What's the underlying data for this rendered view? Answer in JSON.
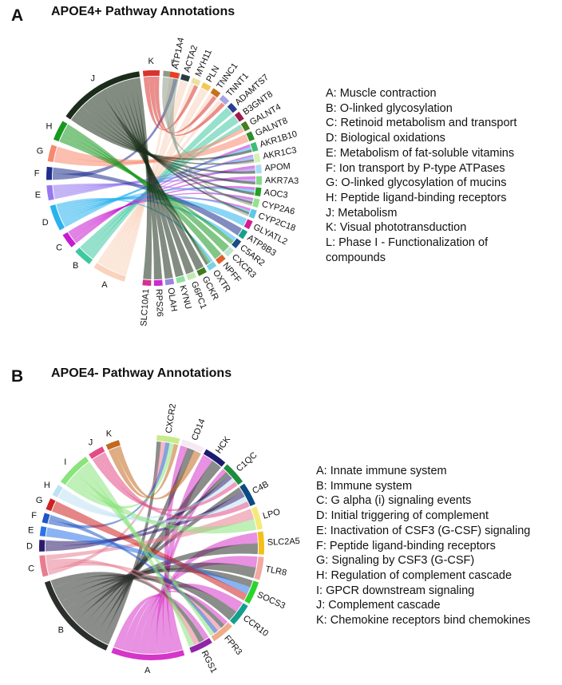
{
  "panelA": {
    "letter": "A",
    "title": "APOE4+ Pathway Annotations",
    "legend": [
      "A: Muscle contraction",
      "B: O-linked glycosylation",
      "C: Retinoid metabolism and transport",
      "D: Biological oxidations",
      "E: Metabolism of fat-soluble vitamins",
      "F: Ion transport by P-type ATPases",
      "G: O-linked glycosylation of mucins",
      "H: Peptide ligand-binding receptors",
      "J: Metabolism",
      "K: Visual phototransduction",
      "L: Phase I - Functionalization of",
      "compounds"
    ],
    "pathways": [
      {
        "label": "A",
        "color": "#f9d3bd"
      },
      {
        "label": "B",
        "color": "#3ec8a0"
      },
      {
        "label": "C",
        "color": "#c61ccf"
      },
      {
        "label": "D",
        "color": "#29b2ee"
      },
      {
        "label": "E",
        "color": "#9678ee"
      },
      {
        "label": "F",
        "color": "#1d2e8c"
      },
      {
        "label": "G",
        "color": "#f7896e"
      },
      {
        "label": "H",
        "color": "#18981f"
      },
      {
        "label": "J",
        "color": "#1b2d1a"
      },
      {
        "label": "K",
        "color": "#d8332e"
      },
      {
        "label": "L",
        "color": "#8d9a8a"
      }
    ],
    "genes": [
      {
        "label": "ATP1A4",
        "color": "#ee3e1d"
      },
      {
        "label": "ACTA2",
        "color": "#2d3a42"
      },
      {
        "label": "MYH11",
        "color": "#ece0a2"
      },
      {
        "label": "PLN",
        "color": "#f3c85a"
      },
      {
        "label": "TNNC1",
        "color": "#c7701d"
      },
      {
        "label": "TNNT1",
        "color": "#a7a5e2"
      },
      {
        "label": "ADAMTS7",
        "color": "#2a3f8f"
      },
      {
        "label": "B3GNT8",
        "color": "#a0194f"
      },
      {
        "label": "GALNT4",
        "color": "#487c1f"
      },
      {
        "label": "GALNT8",
        "color": "#2d8c2a"
      },
      {
        "label": "AKR1B10",
        "color": "#3bbd78"
      },
      {
        "label": "AKR1C3",
        "color": "#d4f2b4"
      },
      {
        "label": "APOM",
        "color": "#a8dcef"
      },
      {
        "label": "AKR7A3",
        "color": "#82d98a"
      },
      {
        "label": "AOC3",
        "color": "#23a023"
      },
      {
        "label": "CYP2A6",
        "color": "#93e38d"
      },
      {
        "label": "CYP2C18",
        "color": "#5cc7e8"
      },
      {
        "label": "GLYATL2",
        "color": "#d21d8f"
      },
      {
        "label": "ATP8B3",
        "color": "#16a089"
      },
      {
        "label": "C5AR2",
        "color": "#1a4d86"
      },
      {
        "label": "CXCR3",
        "color": "#bfe5d0"
      },
      {
        "label": "NPFF",
        "color": "#e0602e"
      },
      {
        "label": "OXTR",
        "color": "#7ad2e5"
      },
      {
        "label": "GCKR",
        "color": "#3f7d1d"
      },
      {
        "label": "G6PC1",
        "color": "#c1e9b6"
      },
      {
        "label": "KYNU",
        "color": "#8ee09f"
      },
      {
        "label": "OLAH",
        "color": "#9a86dc"
      },
      {
        "label": "RPS26",
        "color": "#cc2ad0"
      },
      {
        "label": "SLC10A1",
        "color": "#d62f8e"
      }
    ]
  },
  "panelB": {
    "letter": "B",
    "title": "APOE4- Pathway Annotations",
    "legend": [
      "A: Innate immune system",
      "B: Immune system",
      "C: G alpha (i) signaling events",
      "D: Initial triggering of complement",
      "E: Inactivation of CSF3 (G-CSF) signaling",
      "F: Peptide ligand-binding receptors",
      "G: Signaling by CSF3 (G-CSF)",
      "H: Regulation of complement cascade",
      "I: GPCR downstream signaling",
      "J: Complement cascade",
      "K: Chemokine receptors bind chemokines"
    ],
    "pathways": [
      {
        "label": "A",
        "color": "#d535c9"
      },
      {
        "label": "B",
        "color": "#2b2f2b"
      },
      {
        "label": "C",
        "color": "#e87d92"
      },
      {
        "label": "D",
        "color": "#2a1a6e"
      },
      {
        "label": "E",
        "color": "#2c74e6"
      },
      {
        "label": "F",
        "color": "#1f55c5"
      },
      {
        "label": "G",
        "color": "#cf2121"
      },
      {
        "label": "H",
        "color": "#bfe2f2"
      },
      {
        "label": "I",
        "color": "#8ae37c"
      },
      {
        "label": "J",
        "color": "#e44b85"
      },
      {
        "label": "K",
        "color": "#c2691e"
      }
    ],
    "genes": [
      {
        "label": "CXCR2",
        "color": "#c8ea8c"
      },
      {
        "label": "CD14",
        "color": "#f5eaf4"
      },
      {
        "label": "HCK",
        "color": "#1c1a6e"
      },
      {
        "label": "C1QC",
        "color": "#1d8d3a"
      },
      {
        "label": "C4B",
        "color": "#0c4a82"
      },
      {
        "label": "LPO",
        "color": "#f5e979"
      },
      {
        "label": "SLC2A5",
        "color": "#f2c018"
      },
      {
        "label": "TLR8",
        "color": "#f3a8a0"
      },
      {
        "label": "SOCS3",
        "color": "#2bd42b"
      },
      {
        "label": "CCR10",
        "color": "#149e8e"
      },
      {
        "label": "FPR3",
        "color": "#eeac8a"
      },
      {
        "label": "RGS1",
        "color": "#9224a8"
      }
    ]
  }
}
